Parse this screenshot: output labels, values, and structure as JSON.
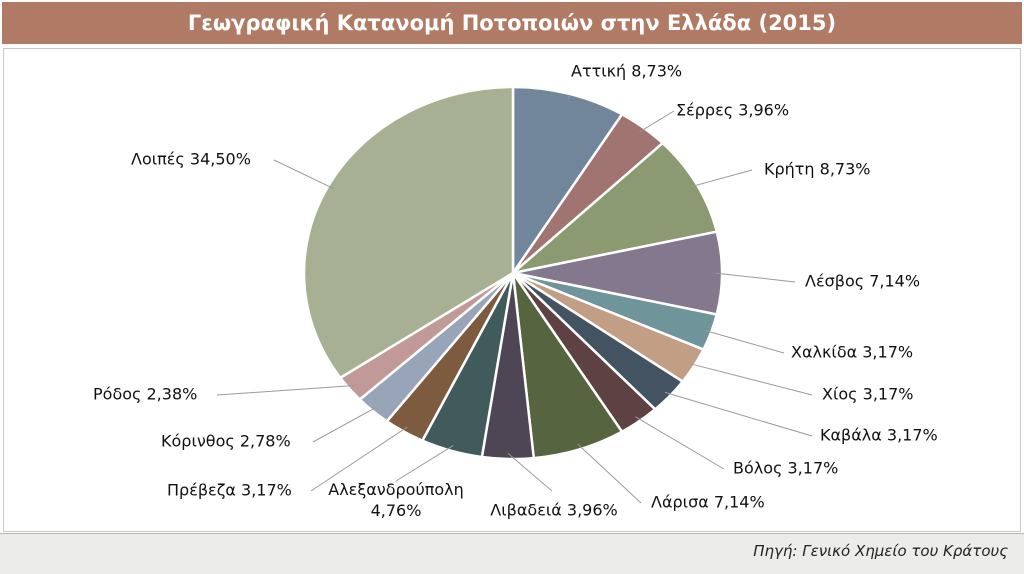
{
  "title": "Γεωγραφική Κατανομή Ποτοποιών στην Ελλάδα (2015)",
  "source": "Πηγή: Γενικό Χημείο του Κράτους",
  "chart_data": {
    "type": "pie",
    "title": "Γεωγραφική Κατανομή Ποτοποιών στην Ελλάδα (2015)",
    "unit": "%",
    "start": "12 o'clock, clockwise",
    "slices": [
      {
        "label": "Αττική",
        "value": 8.73,
        "text": "Αττική 8,73%",
        "color": "#71869a"
      },
      {
        "label": "Σέρρες",
        "value": 3.96,
        "text": "Σέρρες 3,96%",
        "color": "#a07470"
      },
      {
        "label": "Κρήτη",
        "value": 8.73,
        "text": "Κρήτη 8,73%",
        "color": "#8c9a72"
      },
      {
        "label": "Λέσβος",
        "value": 7.14,
        "text": "Λέσβος 7,14%",
        "color": "#84788f"
      },
      {
        "label": "Χαλκίδα",
        "value": 3.17,
        "text": "Χαλκίδα 3,17%",
        "color": "#6f959a"
      },
      {
        "label": "Χίος",
        "value": 3.17,
        "text": "Χίος 3,17%",
        "color": "#c29f84"
      },
      {
        "label": "Καβάλα",
        "value": 3.17,
        "text": "Καβάλα 3,17%",
        "color": "#435361"
      },
      {
        "label": "Βόλος",
        "value": 3.17,
        "text": "Βόλος 3,17%",
        "color": "#5e4243"
      },
      {
        "label": "Λάρισα",
        "value": 7.14,
        "text": "Λάρισα 7,14%",
        "color": "#56643f"
      },
      {
        "label": "Λιβαδειά",
        "value": 3.96,
        "text": "Λιβαδειά 3,96%",
        "color": "#4e4655"
      },
      {
        "label": "Αλεξανδρούπολη",
        "value": 4.76,
        "text": "Αλεξανδρούπολη 4,76%",
        "text_lines": [
          "Αλεξανδρούπολη",
          "4,76%"
        ],
        "color": "#415a5c"
      },
      {
        "label": "Πρέβεζα",
        "value": 3.17,
        "text": "Πρέβεζα 3,17%",
        "color": "#7c5b3f"
      },
      {
        "label": "Κόρινθος",
        "value": 2.78,
        "text": "Κόρινθος 2,78%",
        "color": "#98a5b8"
      },
      {
        "label": "Ρόδος",
        "value": 2.38,
        "text": "Ρόδος 2,38%",
        "color": "#c19a98"
      },
      {
        "label": "Λοιπές",
        "value": 34.5,
        "text": "Λοιπές 34,50%",
        "color": "#a7b093"
      }
    ]
  }
}
